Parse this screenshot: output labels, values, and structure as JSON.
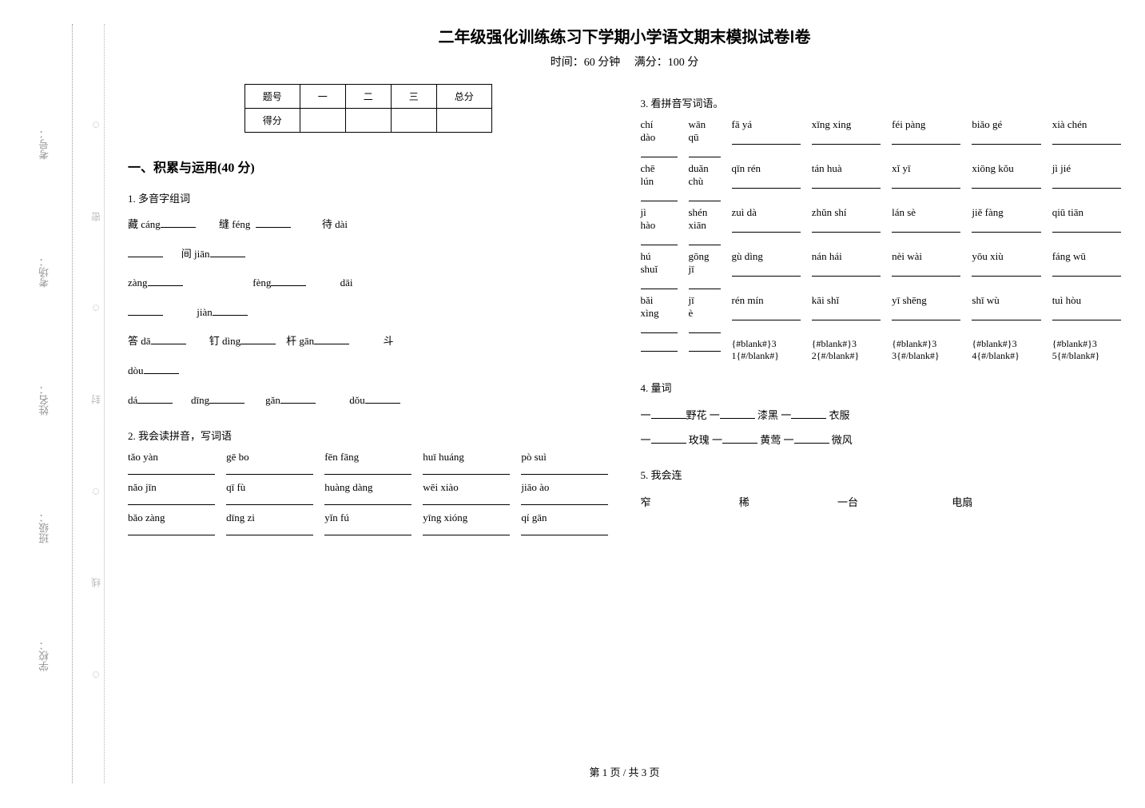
{
  "side": {
    "labels": [
      "考号：",
      "考场：",
      "姓名：",
      "班级：",
      "学校："
    ],
    "dots": [
      "线",
      "封",
      "密"
    ],
    "color": "#999999"
  },
  "title": "二年级强化训练练习下学期小学语文期末模拟试卷Ⅰ卷",
  "subtitle_time": "时间：60 分钟",
  "subtitle_full": "满分：100 分",
  "score_table": {
    "headers": [
      "题号",
      "一",
      "二",
      "三",
      "总分"
    ],
    "row2": "得分"
  },
  "section1": "一、积累与运用(40 分)",
  "q1": {
    "title": "1.  多音字组词",
    "lines": [
      [
        "藏 cáng",
        "缝 féng",
        "待 dài"
      ],
      [
        "间 jiān"
      ],
      [
        "zàng",
        "fèng",
        "dāi"
      ],
      [
        "jiàn"
      ],
      [
        "答 dā",
        "钉 dìng",
        "杆 gān",
        "斗"
      ],
      [
        "dòu"
      ],
      [
        "dá",
        "dīng",
        "gǎn",
        "dǒu"
      ]
    ]
  },
  "q2": {
    "title": "2.  我会读拼音，写词语",
    "rows": [
      [
        "tǎo yàn",
        "gē bo",
        "fēn fāng",
        "huī huáng",
        "pò suì"
      ],
      [
        "nǎo jīn",
        "qī fù",
        "huàng dàng",
        "wēi xiào",
        "jiāo ào"
      ],
      [
        "bǎo zàng",
        "dīng zi",
        "yǐn fú",
        "yīng xióng",
        "qí gān"
      ]
    ]
  },
  "q3": {
    "title": "3.  看拼音写词语。",
    "rows": [
      {
        "a": "chí dào",
        "b": "wān qū",
        "c": "fā yá",
        "d": "xīng xing",
        "e": "féi pàng",
        "f": "biǎo gé",
        "g": "xià chén"
      },
      {
        "a": "chē lún",
        "b": "duǎn chù",
        "c": "qīn rén",
        "d": "tán huà",
        "e": "xǐ yī",
        "f": "xiōng kǒu",
        "g": "jì jié"
      },
      {
        "a": "jì hào",
        "b": "shén xiān",
        "c": "zuì dà",
        "d": "zhǔn shí",
        "e": "lán sè",
        "f": "jiě fàng",
        "g": "qiū tiān"
      },
      {
        "a": "hú shuǐ",
        "b": "gōng jī",
        "c": "gù dìng",
        "d": "nán hái",
        "e": "nèi wài",
        "f": "yōu xiù",
        "g": "fáng wū"
      },
      {
        "a": "bǎi xìng",
        "b": "jī è",
        "c": "rén mín",
        "d": "kāi shǐ",
        "e": "yī shēng",
        "f": "shī wù",
        "g": "tuì hòu"
      }
    ],
    "placeholder": "{#blank#}3"
  },
  "q4": {
    "title": "4.  量词",
    "line1_parts": [
      "一",
      "野花  一",
      "漆黑  一",
      "衣服"
    ],
    "line2_parts": [
      "一",
      "玫瑰  一",
      "黄莺  一",
      "微风"
    ]
  },
  "q5": {
    "title": "5.  我会连",
    "words": [
      "窄",
      "稀",
      "一台",
      "电扇"
    ]
  },
  "footer": "第 1 页   /   共 3 页"
}
